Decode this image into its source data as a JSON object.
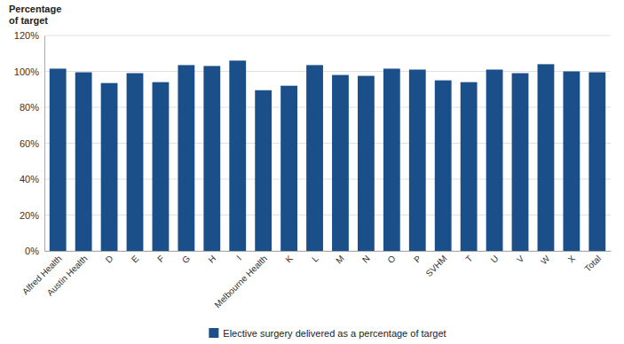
{
  "chart_data": {
    "type": "bar",
    "ylabel": "Percentage\nof target",
    "categories": [
      "Alfred Health",
      "Austin Health",
      "D",
      "E",
      "F",
      "G",
      "H",
      "I",
      "Melbourne Health",
      "K",
      "L",
      "M",
      "N",
      "O",
      "P",
      "SVHM",
      "T",
      "U",
      "V",
      "W",
      "X",
      "Total"
    ],
    "series": [
      {
        "name": "Elective surgery delivered as a percentage of target",
        "color": "#1a4f8a",
        "values": [
          101.5,
          99.5,
          93.5,
          99.0,
          94.0,
          103.5,
          103.0,
          106.0,
          89.5,
          92.0,
          103.5,
          98.0,
          97.5,
          101.5,
          101.0,
          95.0,
          94.0,
          101.0,
          99.0,
          104.0,
          100.0,
          99.5
        ]
      }
    ],
    "ylim": [
      0,
      120
    ],
    "yticks": [
      {
        "value": 0,
        "label": "0%"
      },
      {
        "value": 20,
        "label": "20%"
      },
      {
        "value": 40,
        "label": "40%"
      },
      {
        "value": 60,
        "label": "60%"
      },
      {
        "value": 80,
        "label": "80%"
      },
      {
        "value": 100,
        "label": "100%"
      },
      {
        "value": 120,
        "label": "120%"
      }
    ],
    "grid": true,
    "legend": "bottom"
  }
}
